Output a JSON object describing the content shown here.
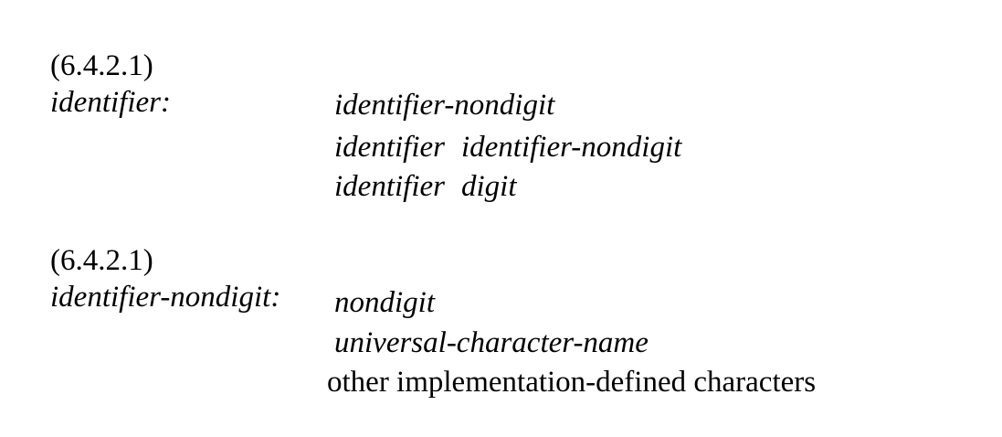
{
  "rules": [
    {
      "section": "(6.4.2.1)",
      "lhs": "identifier:",
      "alternatives": [
        [
          "identifier-nondigit"
        ],
        [
          "identifier",
          "identifier-nondigit"
        ],
        [
          "identifier",
          "digit"
        ]
      ]
    },
    {
      "section": "(6.4.2.1)",
      "lhs": "identifier-nondigit:",
      "alternatives": [
        [
          "nondigit"
        ],
        [
          "universal-character-name"
        ]
      ],
      "prose_alternative": "other implementation-defined characters"
    }
  ]
}
